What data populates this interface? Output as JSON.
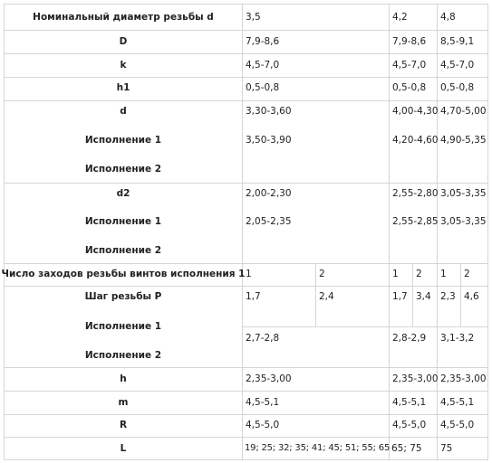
{
  "table": {
    "rows": {
      "nominal": {
        "label": "Номинальный диаметр резьбы d",
        "v1": "3,5",
        "v2": "4,2",
        "v3": "4,8"
      },
      "D": {
        "label": "D",
        "v1": "7,9-8,6",
        "v2": "7,9-8,6",
        "v3": "8,5-9,1"
      },
      "k": {
        "label": "k",
        "v1": "4,5-7,0",
        "v2": "4,5-7,0",
        "v3": "4,5-7,0"
      },
      "h1": {
        "label": "h1",
        "v1": "0,5-0,8",
        "v2": "0,5-0,8",
        "v3": "0,5-0,8"
      },
      "d": {
        "label": "d",
        "sub1": "Исполнение 1",
        "sub2": "Исполнение 2",
        "v1a": "3,30-3,60",
        "v2a": "4,00-4,30",
        "v3a": "4,70-5,00",
        "v1b": "3,50-3,90",
        "v2b": "4,20-4,60",
        "v3b": "4,90-5,35"
      },
      "d2": {
        "label": "d2",
        "sub1": "Исполнение 1",
        "sub2": "Исполнение 2",
        "v1a": "2,00-2,30",
        "v2a": "2,55-2,80",
        "v3a": "3,05-3,35",
        "v1b": "2,05-2,35",
        "v2b": "2,55-2,85",
        "v3b": "3,05-3,35"
      },
      "starts": {
        "label": "Число заходов резьбы винтов исполнения 1",
        "a1": "1",
        "a2": "2",
        "b1": "1",
        "b2": "2",
        "c1": "1",
        "c2": "2"
      },
      "P": {
        "label": "Шаг резьбы P",
        "sub1": "Исполнение 1",
        "sub2": "Исполнение 2",
        "a1": "1,7",
        "a2": "2,4",
        "b1": "1,7",
        "b2": "3,4",
        "c1": "2,3",
        "c2": "4,6",
        "v1b": "2,7-2,8",
        "v2b": "2,8-2,9",
        "v3b": "3,1-3,2"
      },
      "h": {
        "label": "h",
        "v1": "2,35-3,00",
        "v2": "2,35-3,00",
        "v3": "2,35-3,00"
      },
      "m": {
        "label": "m",
        "v1": "4,5-5,1",
        "v2": "4,5-5,1",
        "v3": "4,5-5,1"
      },
      "R": {
        "label": "R",
        "v1": "4,5-5,0",
        "v2": "4,5-5,0",
        "v3": "4,5-5,0"
      },
      "L": {
        "label": "L",
        "v1": "19; 25; 32; 35; 41; 45; 51; 55; 65",
        "v2": "65; 75",
        "v3": "75"
      }
    }
  }
}
